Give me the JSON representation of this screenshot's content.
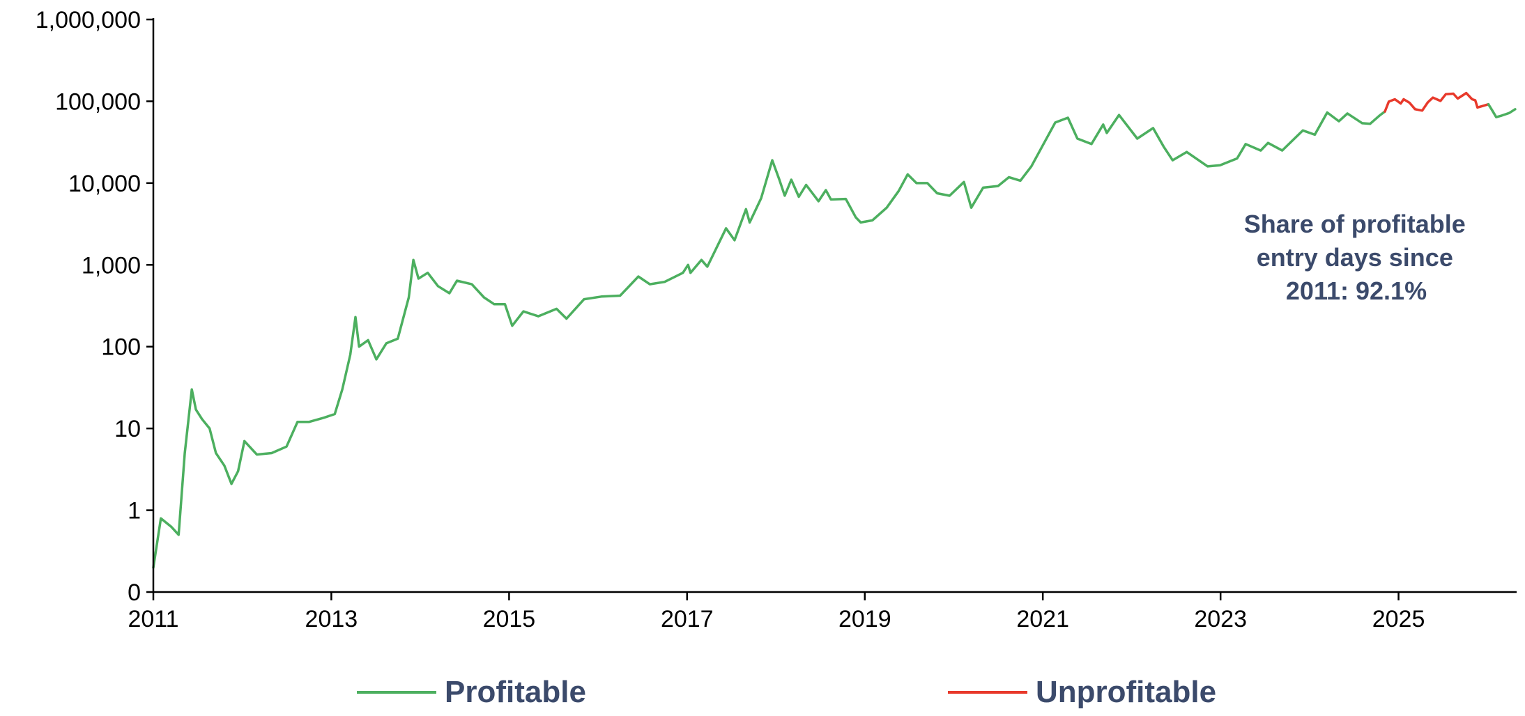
{
  "chart_data": {
    "type": "line",
    "title": "",
    "xlabel": "",
    "ylabel": "",
    "x_scale": "time",
    "y_scale": "log",
    "ylim": [
      0,
      1000000
    ],
    "y_ticks": [
      {
        "value": 0,
        "label": "0"
      },
      {
        "value": 1,
        "label": "1"
      },
      {
        "value": 10,
        "label": "10"
      },
      {
        "value": 100,
        "label": "100"
      },
      {
        "value": 1000,
        "label": "1,000"
      },
      {
        "value": 10000,
        "label": "10,000"
      },
      {
        "value": 100000,
        "label": "100,000"
      },
      {
        "value": 1000000,
        "label": "1,000,000"
      }
    ],
    "x_ticks": [
      "2011",
      "2013",
      "2015",
      "2017",
      "2019",
      "2021",
      "2023",
      "2025"
    ],
    "xlim": [
      "2011-01-01",
      "2026-05-01"
    ],
    "grid": false,
    "legend_position": "bottom",
    "colors": {
      "profitable": "#4caf5f",
      "unprofitable": "#e8392b",
      "annotation": "#3b4a6b",
      "axis": "#000000"
    },
    "annotation": {
      "lines": [
        "Share of profitable",
        "entry days since",
        "2011: 92.1%"
      ]
    },
    "series": [
      {
        "name": "Profitable",
        "color": "#4caf5f",
        "points": [
          [
            "2011-01-01",
            0.3
          ],
          [
            "2011-02-01",
            0.9
          ],
          [
            "2011-03-15",
            0.8
          ],
          [
            "2011-04-15",
            0.7
          ],
          [
            "2011-05-10",
            5
          ],
          [
            "2011-06-08",
            30
          ],
          [
            "2011-06-25",
            17
          ],
          [
            "2011-07-20",
            13
          ],
          [
            "2011-08-20",
            10
          ],
          [
            "2011-09-15",
            5
          ],
          [
            "2011-10-20",
            3.5
          ],
          [
            "2011-11-18",
            2.1
          ],
          [
            "2011-12-15",
            3
          ],
          [
            "2012-01-10",
            7
          ],
          [
            "2012-03-01",
            4.8
          ],
          [
            "2012-05-01",
            5
          ],
          [
            "2012-07-01",
            6
          ],
          [
            "2012-08-15",
            12
          ],
          [
            "2012-10-01",
            12
          ],
          [
            "2012-12-01",
            13.5
          ],
          [
            "2013-01-15",
            15
          ],
          [
            "2013-02-15",
            30
          ],
          [
            "2013-03-20",
            80
          ],
          [
            "2013-04-10",
            230
          ],
          [
            "2013-04-25",
            100
          ],
          [
            "2013-06-01",
            120
          ],
          [
            "2013-07-05",
            70
          ],
          [
            "2013-08-15",
            110
          ],
          [
            "2013-10-01",
            125
          ],
          [
            "2013-11-15",
            400
          ],
          [
            "2013-12-04",
            1150
          ],
          [
            "2013-12-25",
            680
          ],
          [
            "2014-02-01",
            800
          ],
          [
            "2014-03-15",
            550
          ],
          [
            "2014-05-01",
            450
          ],
          [
            "2014-06-01",
            640
          ],
          [
            "2014-08-01",
            580
          ],
          [
            "2014-09-20",
            400
          ],
          [
            "2014-11-01",
            330
          ],
          [
            "2014-12-15",
            330
          ],
          [
            "2015-01-14",
            180
          ],
          [
            "2015-03-01",
            270
          ],
          [
            "2015-05-01",
            235
          ],
          [
            "2015-07-15",
            290
          ],
          [
            "2015-08-25",
            220
          ],
          [
            "2015-11-05",
            380
          ],
          [
            "2016-01-15",
            410
          ],
          [
            "2016-04-01",
            420
          ],
          [
            "2016-06-15",
            720
          ],
          [
            "2016-08-01",
            580
          ],
          [
            "2016-10-01",
            620
          ],
          [
            "2016-12-15",
            800
          ],
          [
            "2017-01-05",
            1000
          ],
          [
            "2017-01-15",
            800
          ],
          [
            "2017-03-01",
            1150
          ],
          [
            "2017-03-25",
            950
          ],
          [
            "2017-06-10",
            2800
          ],
          [
            "2017-07-15",
            2000
          ],
          [
            "2017-08-31",
            4800
          ],
          [
            "2017-09-15",
            3300
          ],
          [
            "2017-11-01",
            6500
          ],
          [
            "2017-12-17",
            19000
          ],
          [
            "2018-01-15",
            11000
          ],
          [
            "2018-02-06",
            7000
          ],
          [
            "2018-03-05",
            11000
          ],
          [
            "2018-04-05",
            6800
          ],
          [
            "2018-05-05",
            9500
          ],
          [
            "2018-06-25",
            6000
          ],
          [
            "2018-07-25",
            8200
          ],
          [
            "2018-08-15",
            6300
          ],
          [
            "2018-10-15",
            6400
          ],
          [
            "2018-11-25",
            3800
          ],
          [
            "2018-12-15",
            3300
          ],
          [
            "2019-02-01",
            3500
          ],
          [
            "2019-04-01",
            5000
          ],
          [
            "2019-05-20",
            8000
          ],
          [
            "2019-06-26",
            12800
          ],
          [
            "2019-08-01",
            10000
          ],
          [
            "2019-09-15",
            10000
          ],
          [
            "2019-10-25",
            7500
          ],
          [
            "2019-12-15",
            7000
          ],
          [
            "2020-02-12",
            10300
          ],
          [
            "2020-03-13",
            5000
          ],
          [
            "2020-05-01",
            8800
          ],
          [
            "2020-07-01",
            9200
          ],
          [
            "2020-08-15",
            11800
          ],
          [
            "2020-10-01",
            10700
          ],
          [
            "2020-11-15",
            16000
          ],
          [
            "2021-01-01",
            29000
          ],
          [
            "2021-02-21",
            55000
          ],
          [
            "2021-04-14",
            63000
          ],
          [
            "2021-05-23",
            35000
          ],
          [
            "2021-07-20",
            30000
          ],
          [
            "2021-09-06",
            52000
          ],
          [
            "2021-09-21",
            41000
          ],
          [
            "2021-11-10",
            68000
          ],
          [
            "2022-01-24",
            35000
          ],
          [
            "2022-03-30",
            47000
          ],
          [
            "2022-05-12",
            28000
          ],
          [
            "2022-06-18",
            19000
          ],
          [
            "2022-08-15",
            24000
          ],
          [
            "2022-11-09",
            16000
          ],
          [
            "2022-12-30",
            16500
          ],
          [
            "2023-03-10",
            20000
          ],
          [
            "2023-04-14",
            30000
          ],
          [
            "2023-06-15",
            25000
          ],
          [
            "2023-07-15",
            31000
          ],
          [
            "2023-09-11",
            25000
          ],
          [
            "2023-12-05",
            44000
          ],
          [
            "2024-01-23",
            39000
          ],
          [
            "2024-03-14",
            73000
          ],
          [
            "2024-05-01",
            57000
          ],
          [
            "2024-06-05",
            71000
          ],
          [
            "2024-08-05",
            54000
          ],
          [
            "2024-09-06",
            53000
          ],
          [
            "2024-10-15",
            67000
          ],
          [
            "2024-11-06",
            75000
          ]
        ]
      },
      {
        "name": "Unprofitable",
        "color": "#e8392b",
        "points": [
          [
            "2024-11-06",
            75000
          ],
          [
            "2024-11-22",
            99000
          ],
          [
            "2024-12-17",
            106000
          ],
          [
            "2025-01-10",
            94000
          ],
          [
            "2025-01-22",
            106000
          ],
          [
            "2025-02-15",
            96000
          ],
          [
            "2025-03-10",
            80000
          ],
          [
            "2025-04-08",
            77000
          ],
          [
            "2025-05-01",
            97000
          ],
          [
            "2025-05-22",
            111000
          ],
          [
            "2025-06-22",
            101000
          ],
          [
            "2025-07-14",
            122000
          ],
          [
            "2025-08-14",
            124000
          ],
          [
            "2025-09-01",
            108000
          ],
          [
            "2025-10-06",
            126000
          ],
          [
            "2025-10-30",
            106000
          ],
          [
            "2025-11-12",
            103000
          ],
          [
            "2025-11-21",
            84000
          ],
          [
            "2025-12-15",
            88000
          ],
          [
            "2026-01-05",
            92000
          ]
        ]
      },
      {
        "name": "",
        "color": "#4caf5f",
        "points": [
          [
            "2026-01-05",
            92000
          ],
          [
            "2026-01-20",
            78000
          ],
          [
            "2026-02-06",
            64000
          ],
          [
            "2026-03-01",
            67000
          ],
          [
            "2026-04-01",
            72000
          ],
          [
            "2026-04-25",
            80000
          ]
        ]
      }
    ]
  }
}
